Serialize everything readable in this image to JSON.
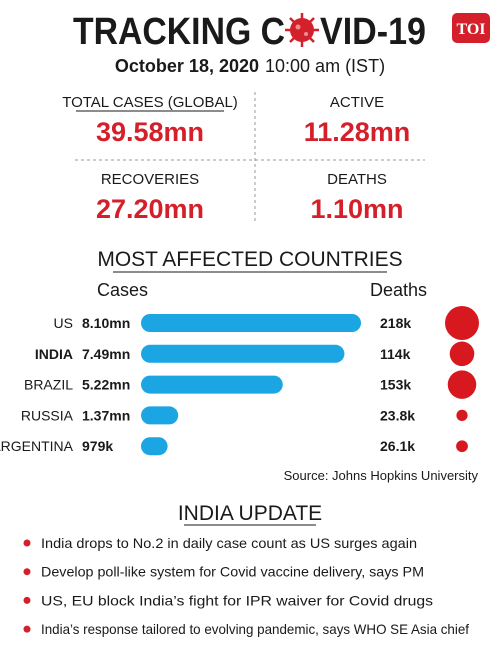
{
  "header": {
    "title_left": "TRACKING C",
    "title_right": "VID-19",
    "logo": "TOI",
    "date": "October 18, 2020",
    "time": "10:00 am (IST)"
  },
  "stats": [
    {
      "label": "TOTAL CASES (GLOBAL)",
      "value": "39.58mn"
    },
    {
      "label": "ACTIVE",
      "value": "11.28mn"
    },
    {
      "label": "RECOVERIES",
      "value": "27.20mn"
    },
    {
      "label": "DEATHS",
      "value": "1.10mn"
    }
  ],
  "chart_data": {
    "type": "bar",
    "title": "MOST AFFECTED COUNTRIES",
    "categories": [
      "US",
      "INDIA",
      "BRAZIL",
      "RUSSIA",
      "ARGENTINA"
    ],
    "highlight": "INDIA",
    "series": [
      {
        "name": "Cases",
        "color": "#1ba6e3",
        "values": [
          8100000,
          7490000,
          5220000,
          1370000,
          979000
        ],
        "value_labels": [
          "8.10mn",
          "7.49mn",
          "5.22mn",
          "1.37mn",
          "979k"
        ]
      },
      {
        "name": "Deaths",
        "color": "#d7191f",
        "values": [
          218000,
          114000,
          153000,
          23800,
          26100
        ],
        "value_labels": [
          "218k",
          "114k",
          "153k",
          "23.8k",
          "26.1k"
        ]
      }
    ],
    "source": "Source: Johns Hopkins University"
  },
  "india_update": {
    "title": "INDIA UPDATE",
    "items": [
      "India drops to No.2 in daily case count as US surges again",
      "Develop poll-like system for Covid vaccine delivery, says PM",
      "US, EU block India’s fight for IPR waiver for Covid drugs",
      "India’s response tailored to evolving pandemic, says WHO SE Asia chief"
    ]
  }
}
